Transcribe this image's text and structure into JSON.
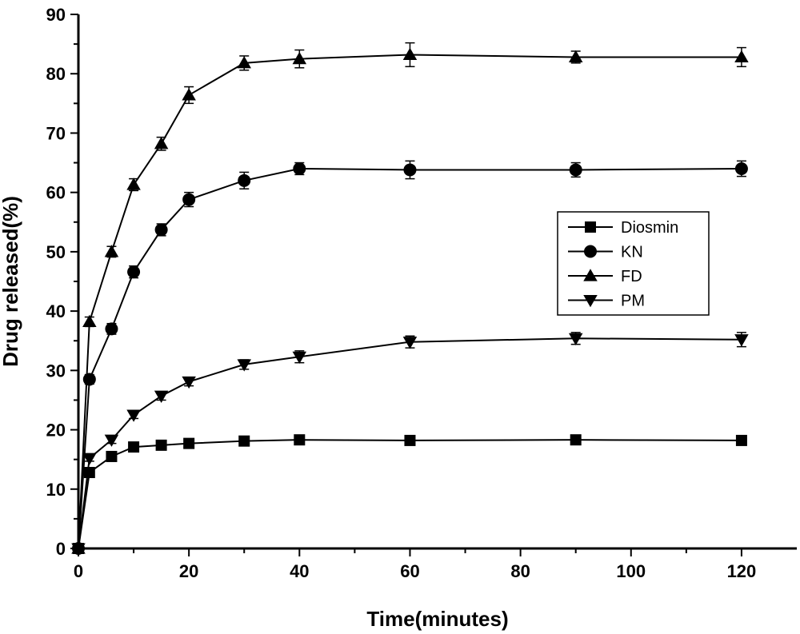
{
  "chart_data": {
    "type": "line",
    "xlabel": "Time(minutes)",
    "ylabel": "Drug released(%)",
    "xlim": [
      0,
      130
    ],
    "ylim": [
      0,
      90
    ],
    "x_ticks": [
      0,
      20,
      40,
      60,
      80,
      100,
      120
    ],
    "y_ticks": [
      0,
      10,
      20,
      30,
      40,
      50,
      60,
      70,
      80,
      90
    ],
    "grid": false,
    "legend_position": "right",
    "error_bars": true,
    "x": [
      0,
      2,
      6,
      10,
      15,
      20,
      30,
      40,
      60,
      90,
      120
    ],
    "series": [
      {
        "name": "Diosmin",
        "marker": "square",
        "color": "#000000",
        "values": [
          0,
          12.8,
          15.5,
          17.1,
          17.4,
          17.7,
          18.1,
          18.3,
          18.2,
          18.3,
          18.2
        ],
        "errors": [
          0,
          0.6,
          0.6,
          0.6,
          0.6,
          0.6,
          0.6,
          0.6,
          0.6,
          0.6,
          0.6
        ]
      },
      {
        "name": "KN",
        "marker": "circle",
        "color": "#000000",
        "values": [
          0,
          28.5,
          37.0,
          46.6,
          53.7,
          58.8,
          62.0,
          64.0,
          63.8,
          63.8,
          64.0
        ],
        "errors": [
          0,
          0.8,
          0.9,
          1.0,
          1.0,
          1.2,
          1.4,
          1.0,
          1.5,
          1.2,
          1.3
        ]
      },
      {
        "name": "FD",
        "marker": "triangle-up",
        "color": "#000000",
        "values": [
          0,
          38.2,
          50.0,
          61.3,
          68.2,
          76.4,
          81.8,
          82.5,
          83.2,
          82.8,
          82.8
        ],
        "errors": [
          0,
          0.8,
          0.9,
          1.0,
          1.1,
          1.4,
          1.2,
          1.5,
          2.0,
          1.0,
          1.6
        ]
      },
      {
        "name": "PM",
        "marker": "triangle-down",
        "color": "#000000",
        "values": [
          0,
          15.2,
          18.3,
          22.5,
          25.7,
          28.1,
          31.0,
          32.3,
          34.8,
          35.4,
          35.2
        ],
        "errors": [
          0,
          0.5,
          0.6,
          0.6,
          0.7,
          0.7,
          0.8,
          1.0,
          1.0,
          1.0,
          1.2
        ]
      }
    ]
  }
}
